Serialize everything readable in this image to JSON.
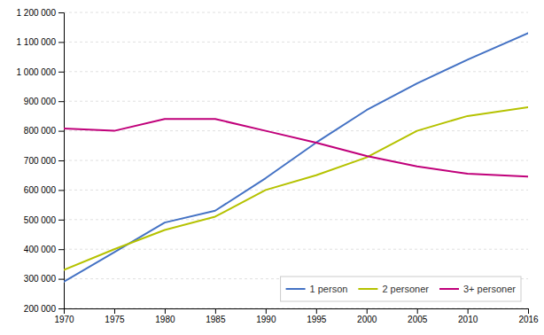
{
  "chart_data": {
    "type": "line",
    "x": [
      1970,
      1975,
      1980,
      1985,
      1990,
      1995,
      2000,
      2005,
      2010,
      2016
    ],
    "series": [
      {
        "name": "1 person",
        "color": "#4472c4",
        "values": [
          290000,
          390000,
          490000,
          530000,
          640000,
          760000,
          870000,
          960000,
          1040000,
          1130000
        ]
      },
      {
        "name": "2 personer",
        "color": "#b5c200",
        "values": [
          330000,
          400000,
          465000,
          510000,
          600000,
          650000,
          710000,
          800000,
          850000,
          880000
        ]
      },
      {
        "name": "3+ personer",
        "color": "#c0007a",
        "values": [
          808000,
          800000,
          840000,
          840000,
          800000,
          760000,
          715000,
          680000,
          655000,
          645000
        ]
      }
    ],
    "xlim": [
      1970,
      2016
    ],
    "xticks": [
      1970,
      1975,
      1980,
      1985,
      1990,
      1995,
      2000,
      2005,
      2010,
      2016
    ],
    "ylim": [
      200000,
      1200000
    ],
    "yticks": [
      {
        "value": 200000,
        "label": "200 000"
      },
      {
        "value": 300000,
        "label": "300 000"
      },
      {
        "value": 400000,
        "label": "400 000"
      },
      {
        "value": 500000,
        "label": "500 000"
      },
      {
        "value": 600000,
        "label": "600 000"
      },
      {
        "value": 700000,
        "label": "700 000"
      },
      {
        "value": 800000,
        "label": "800 000"
      },
      {
        "value": 900000,
        "label": "900 000"
      },
      {
        "value": 1000000,
        "label": "1 000 000"
      },
      {
        "value": 1100000,
        "label": "1 100 000"
      },
      {
        "value": 1200000,
        "label": "1 200 000"
      }
    ],
    "grid": true,
    "legend": "lower right"
  }
}
